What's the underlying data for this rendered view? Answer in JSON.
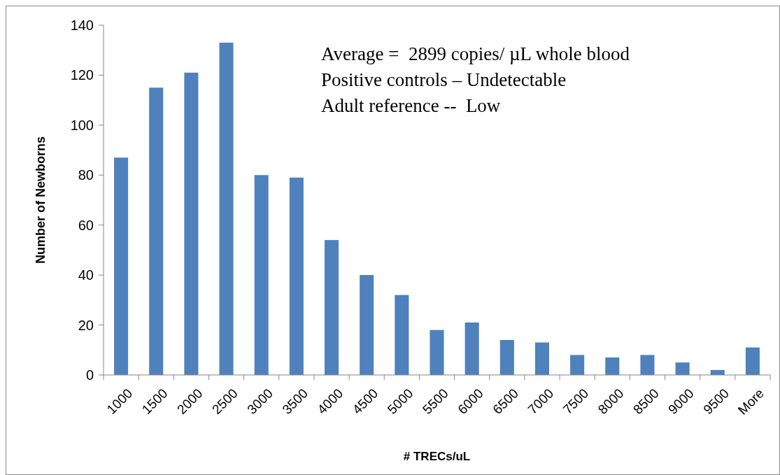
{
  "chart_data": {
    "type": "bar",
    "xlabel": "# TRECs/uL",
    "ylabel": "Number of Newborns",
    "categories": [
      "1000",
      "1500",
      "2000",
      "2500",
      "3000",
      "3500",
      "4000",
      "4500",
      "5000",
      "5500",
      "6000",
      "6500",
      "7000",
      "7500",
      "8000",
      "8500",
      "9000",
      "9500",
      "More"
    ],
    "values": [
      87,
      115,
      121,
      133,
      80,
      79,
      54,
      40,
      32,
      18,
      21,
      14,
      13,
      8,
      7,
      8,
      5,
      2,
      11
    ],
    "color": "#4f81bd",
    "ylim": [
      0,
      140
    ],
    "yticks": [
      0,
      20,
      40,
      60,
      80,
      100,
      120,
      140
    ],
    "grid": false,
    "annotations": [
      "Average =  2899 copies/ µL whole blood",
      "Positive controls – Undetectable",
      "Adult reference --  Low"
    ]
  }
}
